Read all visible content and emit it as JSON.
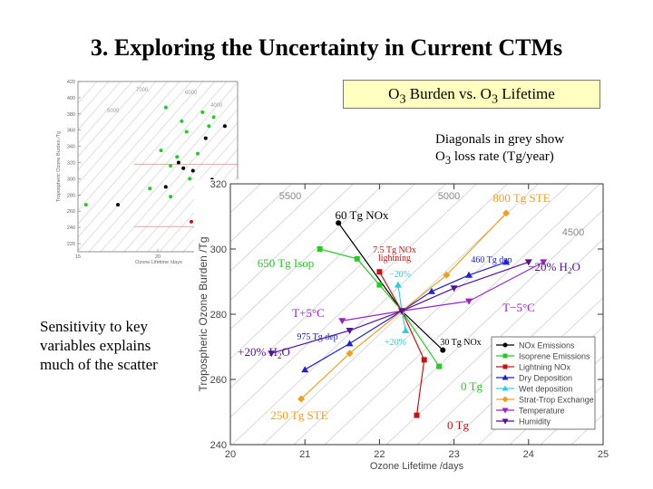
{
  "slide": {
    "title": "3. Exploring the Uncertainty in Current CTMs",
    "callout": {
      "p1": "O",
      "s1": "3",
      "p2": " Burden vs. O",
      "s2": "3",
      "p3": " Lifetime"
    },
    "diag_note": {
      "l1": "Diagonals in grey show",
      "l2a": "O",
      "l2s": "3",
      "l2b": " loss rate (Tg/year)"
    },
    "sens_note": [
      "Sensitivity to key",
      "variables explains",
      "much of the scatter"
    ]
  },
  "colors": {
    "NOx": "#000000",
    "Isoprene": "#22cc22",
    "Lightning": "#cc1111",
    "DryDep": "#2222cc",
    "WetDep": "#33ccdd",
    "STE": "#f0a020",
    "Temperature": "#9922cc",
    "Humidity": "#551199"
  },
  "chart_data": [
    {
      "type": "scatter",
      "title": "",
      "xlabel": "Ozone Lifetime /days",
      "ylabel": "Tropospheric Ozone Burden /Tg",
      "xlim": [
        20,
        25
      ],
      "ylim": [
        240,
        320
      ],
      "xticks": [
        "20",
        "21",
        "22",
        "23",
        "24",
        "25"
      ],
      "yticks": [
        "240",
        "260",
        "280",
        "300",
        "320"
      ],
      "diagonal_labels": [
        "5500",
        "5000",
        "4500"
      ],
      "center": {
        "x": 22.3,
        "y": 281
      },
      "legend": {
        "position": "lower-right",
        "entries": [
          "NOx Emissions",
          "Isoprene Emissions",
          "Lightning NOx",
          "Dry Deposition",
          "Wet deposition",
          "Strat-Trop Exchange",
          "Temperature",
          "Humidity"
        ]
      },
      "series": [
        {
          "name": "NOx Emissions",
          "points": [
            [
              21.45,
              308
            ],
            [
              22.3,
              281
            ],
            [
              22.85,
              269
            ]
          ]
        },
        {
          "name": "Isoprene Emissions",
          "points": [
            [
              21.2,
              300
            ],
            [
              21.7,
              297
            ],
            [
              22.0,
              289
            ],
            [
              22.3,
              281
            ],
            [
              22.8,
              264
            ]
          ]
        },
        {
          "name": "Lightning NOx",
          "points": [
            [
              22.0,
              293
            ],
            [
              22.3,
              281
            ],
            [
              22.6,
              266
            ],
            [
              22.5,
              249
            ]
          ]
        },
        {
          "name": "Dry Deposition",
          "points": [
            [
              21.0,
              263
            ],
            [
              21.6,
              271
            ],
            [
              22.3,
              281
            ],
            [
              22.7,
              287
            ],
            [
              23.2,
              292
            ],
            [
              23.7,
              296
            ]
          ]
        },
        {
          "name": "Wet deposition",
          "points": [
            [
              22.25,
              289
            ],
            [
              22.3,
              281
            ],
            [
              22.35,
              275
            ]
          ]
        },
        {
          "name": "Strat-Trop Exchange",
          "points": [
            [
              20.95,
              254
            ],
            [
              21.6,
              268
            ],
            [
              22.3,
              281
            ],
            [
              22.9,
              292
            ],
            [
              23.7,
              311
            ]
          ]
        },
        {
          "name": "Temperature",
          "points": [
            [
              21.5,
              278
            ],
            [
              22.3,
              281
            ],
            [
              23.2,
              284
            ],
            [
              24.2,
              296
            ]
          ]
        },
        {
          "name": "Humidity",
          "points": [
            [
              20.55,
              268
            ],
            [
              21.6,
              275
            ],
            [
              22.3,
              281
            ],
            [
              23.0,
              288
            ],
            [
              24.0,
              296
            ]
          ]
        }
      ],
      "annotations": [
        {
          "text": "800 Tg STE",
          "color": "#f0a020"
        },
        {
          "text": "60 Tg NOx",
          "color": "#000000"
        },
        {
          "text": "650 Tg Isop",
          "color": "#22cc22"
        },
        {
          "text": "7.5 Tg NOx",
          "color": "#cc1111"
        },
        {
          "text": "lightning",
          "color": "#cc1111"
        },
        {
          "text": "460 Tg dep",
          "color": "#2222cc"
        },
        {
          "text": "−20% H",
          "sub": "2",
          "tail": "O",
          "color": "#551199"
        },
        {
          "text": "−20%",
          "color": "#33ccdd"
        },
        {
          "text": "T+5°C",
          "color": "#9922cc"
        },
        {
          "text": "T−5°C",
          "color": "#9922cc"
        },
        {
          "text": "975 Tg dep",
          "color": "#2222cc"
        },
        {
          "text": "+20%",
          "color": "#33ccdd"
        },
        {
          "text": "30 Tg NOx",
          "color": "#000000"
        },
        {
          "text": "+20% H",
          "sub": "2",
          "tail": "O",
          "color": "#551199"
        },
        {
          "text": "0 Tg",
          "color": "#22cc22"
        },
        {
          "text": "250 Tg STE",
          "color": "#f0a020"
        },
        {
          "text": "0 Tg",
          "color": "#cc1111"
        }
      ]
    },
    {
      "type": "scatter",
      "title": "",
      "xlabel": "Ozone Lifetime /days",
      "ylabel": "Tropospheric Ozone Burden /Tg",
      "xlim": [
        15,
        25
      ],
      "ylim": [
        210,
        420
      ],
      "xticks": [
        "15",
        "20"
      ],
      "yticks": [
        "220",
        "240",
        "260",
        "280",
        "300",
        "320",
        "340",
        "360",
        "380",
        "400",
        "420"
      ],
      "diagonal_labels": [
        "7000",
        "6000",
        "5000",
        "4000"
      ],
      "series": [
        {
          "name": "models",
          "color": "#22cc22",
          "points": [
            [
              20.5,
              388
            ],
            [
              21.5,
              371
            ],
            [
              22.8,
              382
            ],
            [
              23.5,
              376
            ],
            [
              23.2,
              365
            ],
            [
              21.8,
              358
            ],
            [
              20.2,
              335
            ],
            [
              21.2,
              327
            ],
            [
              22.5,
              331
            ],
            [
              20.8,
              316
            ],
            [
              19.5,
              288
            ],
            [
              20.8,
              278
            ],
            [
              22.0,
              300
            ],
            [
              15.5,
              268
            ]
          ]
        },
        {
          "name": "models",
          "color": "#000000",
          "points": [
            [
              24.2,
              365
            ],
            [
              23.0,
              350
            ],
            [
              21.3,
              320
            ],
            [
              21.6,
              313
            ],
            [
              22.2,
              310
            ],
            [
              23.4,
              299
            ],
            [
              20.5,
              290
            ],
            [
              22.5,
              281
            ],
            [
              22.5,
              275
            ],
            [
              17.5,
              268
            ]
          ]
        },
        {
          "name": "models",
          "color": "#cc1111",
          "points": [
            [
              22.8,
              270
            ],
            [
              22.1,
              247
            ],
            [
              22.5,
              232
            ]
          ]
        }
      ]
    }
  ]
}
